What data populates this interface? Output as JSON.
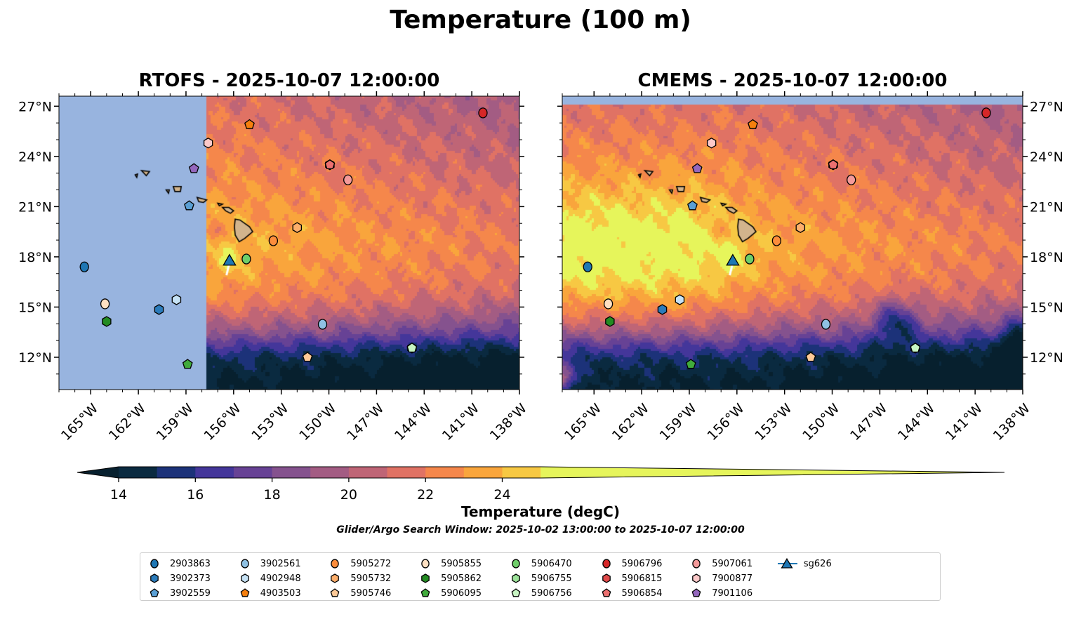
{
  "title": "Temperature (100 m)",
  "chart_data": [
    {
      "type": "heatmap",
      "title": "RTOFS - 2025-10-07 12:00:00",
      "lon_range": [
        -167,
        -138
      ],
      "lat_range": [
        10.07,
        27.6
      ],
      "no_data_region": "lon < -157.7 (light blue)",
      "x_ticks": [
        -165,
        -162,
        -159,
        -156,
        -153,
        -150,
        -147,
        -144,
        -141,
        -138
      ],
      "x_tick_labels": [
        "165°W",
        "162°W",
        "159°W",
        "156°W",
        "153°W",
        "150°W",
        "147°W",
        "144°W",
        "141°W",
        "138°W"
      ],
      "y_ticks": [
        12,
        15,
        18,
        21,
        24,
        27
      ],
      "y_tick_labels": [
        "12°N",
        "15°N",
        "18°N",
        "21°N",
        "24°N",
        "27°N"
      ],
      "y_label_side": "left"
    },
    {
      "type": "heatmap",
      "title": "CMEMS - 2025-10-07 12:00:00",
      "lon_range": [
        -167,
        -138
      ],
      "lat_range": [
        10.07,
        27.6
      ],
      "no_data_region": "lat > 27.05 (light blue)",
      "x_ticks": [
        -165,
        -162,
        -159,
        -156,
        -153,
        -150,
        -147,
        -144,
        -141,
        -138
      ],
      "x_tick_labels": [
        "165°W",
        "162°W",
        "159°W",
        "156°W",
        "153°W",
        "150°W",
        "147°W",
        "144°W",
        "141°W",
        "138°W"
      ],
      "y_ticks": [
        12,
        15,
        18,
        21,
        24,
        27
      ],
      "y_tick_labels": [
        "12°N",
        "15°N",
        "18°N",
        "21°N",
        "24°N",
        "27°N"
      ],
      "y_label_side": "right"
    }
  ],
  "colorbar": {
    "label": "Temperature (degC)",
    "levels": [
      14,
      15,
      16,
      17,
      18,
      19,
      20,
      21,
      22,
      23,
      24,
      25
    ],
    "ticks": [
      14,
      16,
      18,
      20,
      22,
      24
    ],
    "tick_labels": [
      "14",
      "16",
      "18",
      "20",
      "22",
      "24"
    ],
    "extend": "both",
    "colors": [
      "#07202e",
      "#0a2a40",
      "#1c3279",
      "#44369a",
      "#674295",
      "#85528e",
      "#a35c83",
      "#bf6576",
      "#e07264",
      "#f5874b",
      "#f9a53c",
      "#f7c843",
      "#e6f55b"
    ],
    "nodata_color": "#98b4df",
    "land_color": "#d2b48c"
  },
  "search_window": "Glider/Argo Search Window: 2025-10-02 13:00:00 to 2025-10-07 12:00:00",
  "markers": [
    {
      "id": "2903863",
      "shape": "circle",
      "color": "#1f77b4",
      "lon": -165.4,
      "lat": 17.4
    },
    {
      "id": "3902373",
      "shape": "hexagon",
      "color": "#2b7bba",
      "lon": -160.7,
      "lat": 14.85
    },
    {
      "id": "3902559",
      "shape": "pentagon",
      "color": "#5a9fd4",
      "lon": -158.8,
      "lat": 21.05
    },
    {
      "id": "3902561",
      "shape": "circle",
      "color": "#8fc1e3",
      "lon": -150.4,
      "lat": 13.97
    },
    {
      "id": "4902948",
      "shape": "hexagon",
      "color": "#c6e2f5",
      "lon": -159.6,
      "lat": 15.44
    },
    {
      "id": "4903503",
      "shape": "pentagon",
      "color": "#f57f0e",
      "lon": -155.0,
      "lat": 25.9
    },
    {
      "id": "5905272",
      "shape": "circle",
      "color": "#fd8d3c",
      "lon": -153.5,
      "lat": 18.96
    },
    {
      "id": "5905732",
      "shape": "hexagon",
      "color": "#fdae6b",
      "lon": -152.0,
      "lat": 19.75
    },
    {
      "id": "5905746",
      "shape": "pentagon",
      "color": "#fdc997",
      "lon": -151.35,
      "lat": 12.0
    },
    {
      "id": "5905855",
      "shape": "circle",
      "color": "#fee0c2",
      "lon": -164.1,
      "lat": 15.19
    },
    {
      "id": "5905862",
      "shape": "hexagon",
      "color": "#238b22",
      "lon": -164.0,
      "lat": 14.14
    },
    {
      "id": "5906095",
      "shape": "pentagon",
      "color": "#41ab3c",
      "lon": -158.9,
      "lat": 11.58
    },
    {
      "id": "5906470",
      "shape": "circle",
      "color": "#6fce6a",
      "lon": -155.2,
      "lat": 17.87
    },
    {
      "id": "5906755",
      "shape": "hexagon",
      "color": "#9de39a",
      "lon": -144.77,
      "lat": 12.55
    },
    {
      "id": "5906756",
      "shape": "pentagon",
      "color": "#c7f4c2",
      "lon": -144.77,
      "lat": 12.55
    },
    {
      "id": "5906796",
      "shape": "circle",
      "color": "#d62728",
      "lon": -140.3,
      "lat": 26.6
    },
    {
      "id": "5906815",
      "shape": "hexagon",
      "color": "#e04a4a",
      "lon": -149.94,
      "lat": 23.5
    },
    {
      "id": "5906854",
      "shape": "pentagon",
      "color": "#ec7070",
      "lon": -149.94,
      "lat": 23.5
    },
    {
      "id": "5907061",
      "shape": "circle",
      "color": "#f49a9a",
      "lon": -148.8,
      "lat": 22.6
    },
    {
      "id": "7900877",
      "shape": "hexagon",
      "color": "#fcc9c9",
      "lon": -157.6,
      "lat": 24.8
    },
    {
      "id": "7901106",
      "shape": "pentagon",
      "color": "#9467bd",
      "lon": -158.5,
      "lat": 23.27
    },
    {
      "id": "sg626",
      "shape": "triangle",
      "color": "#1f77b4",
      "lon": -156.26,
      "lat": 17.8
    }
  ],
  "legend_order": [
    "2903863",
    "3902373",
    "3902559",
    "3902561",
    "4902948",
    "4903503",
    "5905272",
    "5905732",
    "5905746",
    "5905855",
    "5905862",
    "5906095",
    "5906470",
    "5906755",
    "5906756",
    "5906796",
    "5906815",
    "5906854",
    "5907061",
    "7900877",
    "7901106",
    "sg626"
  ]
}
